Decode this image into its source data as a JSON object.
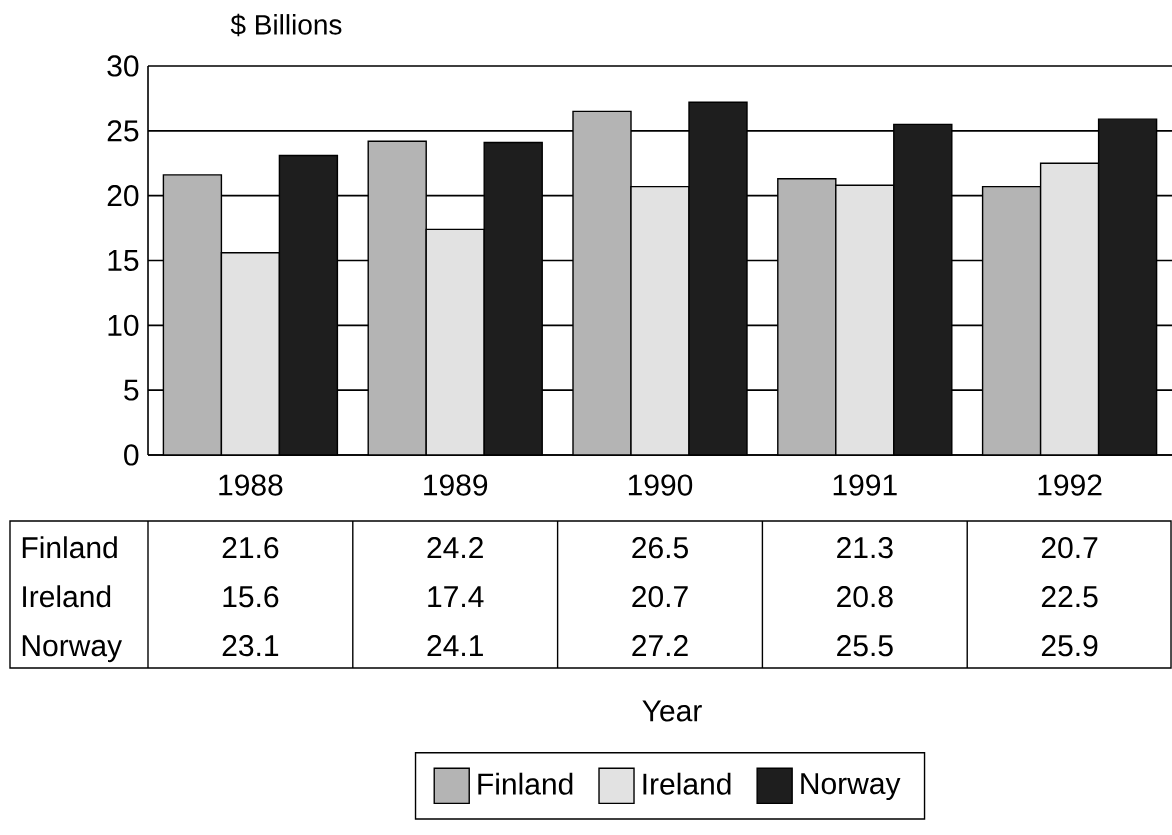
{
  "chart_data": {
    "type": "bar",
    "ylabel": "$ Billions",
    "annotations": [
      "Year"
    ],
    "categories": [
      "1988",
      "1989",
      "1990",
      "1991",
      "1992"
    ],
    "series": [
      {
        "name": "Finland",
        "color": "#b4b4b4",
        "values": [
          21.6,
          24.2,
          26.5,
          21.3,
          20.7
        ]
      },
      {
        "name": "Ireland",
        "color": "#e2e2e2",
        "values": [
          15.6,
          17.4,
          20.7,
          20.8,
          22.5
        ]
      },
      {
        "name": "Norway",
        "color": "#1e1e1e",
        "values": [
          23.1,
          24.1,
          27.2,
          25.5,
          25.9
        ]
      }
    ],
    "ylim": [
      0,
      30
    ],
    "yticks": [
      0,
      5,
      10,
      15,
      20,
      25,
      30
    ],
    "grid": "y",
    "legend": "bottom",
    "data_labels": true
  }
}
